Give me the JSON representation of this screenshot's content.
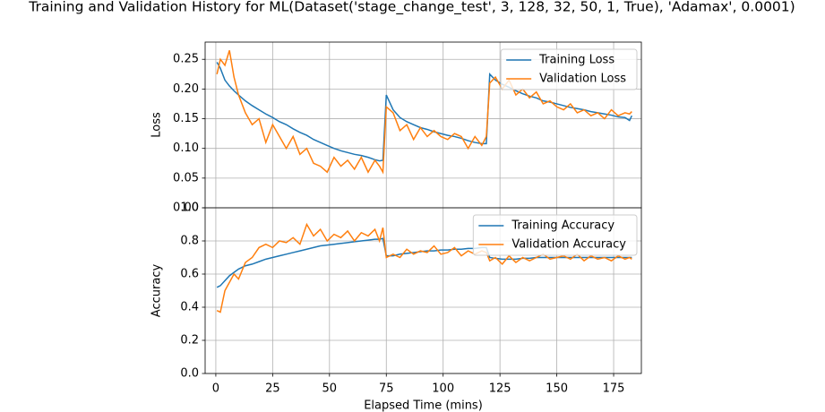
{
  "title": "Training and Validation History for ML(Dataset('stage_change_test', 3, 128, 32, 50, 1, True), 'Adamax', 0.0001)",
  "chart_data": [
    {
      "type": "line",
      "ylabel": "Loss",
      "legend": "upper right",
      "grid": true,
      "xlim": [
        -4.7,
        187.2
      ],
      "xticks": [
        0,
        25,
        50,
        75,
        100,
        125,
        150,
        175
      ],
      "ylim": [
        0,
        0.279
      ],
      "yticks": [
        {
          "value": 0,
          "label": "0.00"
        },
        0.05,
        {
          "value": 0.1,
          "label": "0.10"
        },
        0.15,
        {
          "value": 0.2,
          "label": "0.20"
        },
        0.25
      ],
      "x": [
        0.5,
        2,
        4,
        6,
        8,
        10,
        13,
        16,
        19,
        22,
        25,
        28,
        31,
        34,
        37,
        40,
        43,
        46,
        49,
        52,
        55,
        58,
        61,
        64,
        67,
        70,
        72,
        73.5,
        75,
        78,
        81,
        84,
        87,
        90,
        93,
        96,
        99,
        102,
        105,
        108,
        111,
        114,
        117,
        119,
        120.5,
        123,
        126,
        129,
        132,
        135,
        138,
        141,
        144,
        147,
        150,
        153,
        156,
        159,
        162,
        165,
        168,
        171,
        174,
        177,
        180,
        182,
        183
      ],
      "series": [
        {
          "name": "Training Loss",
          "color": "#1f77b4",
          "values": [
            0.245,
            0.235,
            0.215,
            0.205,
            0.197,
            0.19,
            0.18,
            0.172,
            0.165,
            0.158,
            0.152,
            0.145,
            0.14,
            0.133,
            0.127,
            0.122,
            0.115,
            0.11,
            0.105,
            0.1,
            0.096,
            0.093,
            0.09,
            0.088,
            0.085,
            0.081,
            0.079,
            0.08,
            0.19,
            0.165,
            0.152,
            0.145,
            0.14,
            0.135,
            0.132,
            0.128,
            0.125,
            0.122,
            0.12,
            0.117,
            0.113,
            0.11,
            0.108,
            0.108,
            0.225,
            0.215,
            0.208,
            0.203,
            0.197,
            0.192,
            0.188,
            0.185,
            0.18,
            0.178,
            0.175,
            0.172,
            0.169,
            0.167,
            0.165,
            0.162,
            0.16,
            0.158,
            0.156,
            0.153,
            0.152,
            0.147,
            0.155
          ]
        },
        {
          "name": "Validation Loss",
          "color": "#ff7f0e",
          "values": [
            0.225,
            0.25,
            0.24,
            0.265,
            0.22,
            0.19,
            0.16,
            0.14,
            0.15,
            0.11,
            0.14,
            0.12,
            0.1,
            0.12,
            0.09,
            0.1,
            0.075,
            0.07,
            0.06,
            0.085,
            0.07,
            0.08,
            0.065,
            0.085,
            0.06,
            0.08,
            0.07,
            0.06,
            0.17,
            0.16,
            0.13,
            0.14,
            0.115,
            0.135,
            0.12,
            0.13,
            0.12,
            0.115,
            0.125,
            0.12,
            0.1,
            0.12,
            0.105,
            0.12,
            0.21,
            0.22,
            0.2,
            0.215,
            0.19,
            0.2,
            0.185,
            0.195,
            0.175,
            0.18,
            0.17,
            0.165,
            0.175,
            0.16,
            0.165,
            0.155,
            0.16,
            0.15,
            0.165,
            0.155,
            0.16,
            0.158,
            0.162
          ]
        }
      ]
    },
    {
      "type": "line",
      "ylabel": "Accuracy",
      "xlabel": "Elapsed Time (mins)",
      "legend": "upper right",
      "grid": true,
      "xlim": [
        -4.7,
        187.2
      ],
      "xticks": [
        0,
        25,
        50,
        75,
        100,
        125,
        150,
        175
      ],
      "ylim": [
        0,
        1
      ],
      "yticks": [
        {
          "value": 0,
          "label": "0.0"
        },
        0.2,
        0.4,
        0.6,
        0.8,
        {
          "value": 1,
          "label": "1.0"
        }
      ],
      "x": [
        0.5,
        2,
        4,
        6,
        8,
        10,
        13,
        16,
        19,
        22,
        25,
        28,
        31,
        34,
        37,
        40,
        43,
        46,
        49,
        52,
        55,
        58,
        61,
        64,
        67,
        70,
        72,
        73.5,
        75,
        78,
        81,
        84,
        87,
        90,
        93,
        96,
        99,
        102,
        105,
        108,
        111,
        114,
        117,
        119,
        120.5,
        123,
        126,
        129,
        132,
        135,
        138,
        141,
        144,
        147,
        150,
        153,
        156,
        159,
        162,
        165,
        168,
        171,
        174,
        177,
        180,
        182,
        183
      ],
      "series": [
        {
          "name": "Training Accuracy",
          "color": "#1f77b4",
          "values": [
            0.52,
            0.53,
            0.56,
            0.59,
            0.61,
            0.63,
            0.65,
            0.66,
            0.675,
            0.69,
            0.7,
            0.71,
            0.72,
            0.73,
            0.74,
            0.75,
            0.76,
            0.77,
            0.775,
            0.78,
            0.785,
            0.79,
            0.795,
            0.8,
            0.805,
            0.81,
            0.81,
            0.815,
            0.71,
            0.71,
            0.72,
            0.725,
            0.73,
            0.735,
            0.74,
            0.74,
            0.745,
            0.745,
            0.75,
            0.75,
            0.755,
            0.755,
            0.76,
            0.76,
            0.7,
            0.695,
            0.69,
            0.69,
            0.69,
            0.695,
            0.695,
            0.7,
            0.7,
            0.7,
            0.7,
            0.7,
            0.7,
            0.7,
            0.7,
            0.7,
            0.7,
            0.7,
            0.7,
            0.7,
            0.7,
            0.7,
            0.7
          ]
        },
        {
          "name": "Validation Accuracy",
          "color": "#ff7f0e",
          "values": [
            0.38,
            0.37,
            0.5,
            0.55,
            0.6,
            0.57,
            0.67,
            0.7,
            0.76,
            0.78,
            0.76,
            0.8,
            0.79,
            0.82,
            0.78,
            0.9,
            0.83,
            0.87,
            0.8,
            0.84,
            0.82,
            0.86,
            0.8,
            0.85,
            0.83,
            0.87,
            0.8,
            0.88,
            0.7,
            0.72,
            0.7,
            0.75,
            0.72,
            0.74,
            0.73,
            0.77,
            0.72,
            0.73,
            0.76,
            0.71,
            0.74,
            0.72,
            0.74,
            0.73,
            0.68,
            0.7,
            0.66,
            0.71,
            0.67,
            0.7,
            0.68,
            0.7,
            0.72,
            0.69,
            0.7,
            0.71,
            0.69,
            0.72,
            0.68,
            0.71,
            0.69,
            0.7,
            0.68,
            0.71,
            0.69,
            0.7,
            0.69
          ]
        }
      ]
    }
  ]
}
